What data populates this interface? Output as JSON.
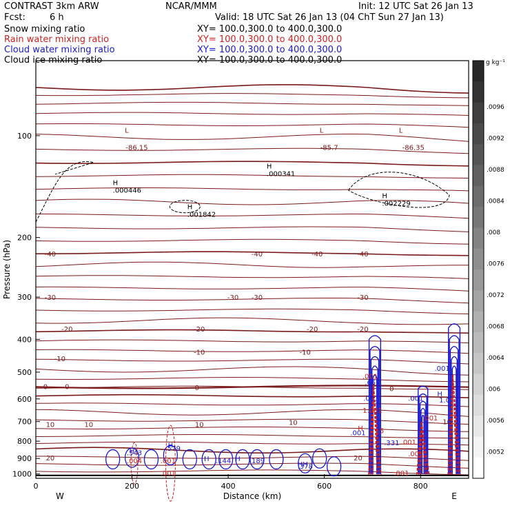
{
  "header": {
    "left_title": "CONTRAST   3km ARW",
    "center_title": "NCAR/MMM",
    "init": "Init: 12 UTC Sat 26 Jan 13",
    "fcst_label": "Fcst:",
    "fcst_value": "6 h",
    "valid": "Valid: 18 UTC Sat 26 Jan 13 (04 ChT Sun 27 Jan 13)",
    "fields": [
      {
        "name": "Snow mixing ratio",
        "xy": "XY=  100.0,300.0  to  400.0,300.0",
        "color": "#000000"
      },
      {
        "name": "Rain water mixing ratio",
        "xy": "XY=  100.0,300.0  to  400.0,300.0",
        "color": "#cc2222"
      },
      {
        "name": "Cloud water mixing ratio",
        "xy": "XY=  100.0,300.0  to  400.0,300.0",
        "color": "#1a1acc"
      },
      {
        "name": "Cloud ice mixing ratio",
        "xy": "XY=  100.0,300.0  to  400.0,300.0",
        "color": "#000000"
      }
    ]
  },
  "chart_data": {
    "type": "contour",
    "xlabel": "Distance (km)",
    "ylabel": "Pressure (hPa)",
    "xlim": [
      0,
      900
    ],
    "ylim": [
      1030,
      60
    ],
    "y_scale": "log",
    "x_ticks": [
      0,
      200,
      400,
      600,
      800
    ],
    "y_ticks": [
      100,
      200,
      300,
      400,
      500,
      600,
      700,
      800,
      900,
      1000
    ],
    "x_end_labels": {
      "left": "W",
      "right": "E"
    },
    "colorbar": {
      "unit": "g kg⁻¹",
      "ticks": [
        ".0096",
        ".0092",
        ".0088",
        ".0084",
        ".008",
        ".0076",
        ".0072",
        ".0068",
        ".0064",
        ".006",
        ".0056",
        ".0052"
      ]
    },
    "temperature_contour_labels": [
      {
        "text": "-86.15",
        "x": 210,
        "p": 108
      },
      {
        "text": "-85.7",
        "x": 610,
        "p": 108
      },
      {
        "text": "-86.35",
        "x": 785,
        "p": 108
      },
      {
        "text": "-40",
        "x": 30,
        "p": 223
      },
      {
        "text": "-40",
        "x": 460,
        "p": 223
      },
      {
        "text": "-40",
        "x": 585,
        "p": 223
      },
      {
        "text": "-40",
        "x": 680,
        "p": 223
      },
      {
        "text": "-30",
        "x": 30,
        "p": 300
      },
      {
        "text": "-30",
        "x": 410,
        "p": 300
      },
      {
        "text": "-30",
        "x": 460,
        "p": 300
      },
      {
        "text": "-30",
        "x": 680,
        "p": 300
      },
      {
        "text": "-20",
        "x": 65,
        "p": 372
      },
      {
        "text": "-20",
        "x": 340,
        "p": 372
      },
      {
        "text": "-20",
        "x": 575,
        "p": 372
      },
      {
        "text": "-20",
        "x": 680,
        "p": 372
      },
      {
        "text": "-10",
        "x": 50,
        "p": 455
      },
      {
        "text": "-10",
        "x": 340,
        "p": 435
      },
      {
        "text": "-10",
        "x": 560,
        "p": 435
      },
      {
        "text": "0",
        "x": 20,
        "p": 550
      },
      {
        "text": "0",
        "x": 65,
        "p": 550
      },
      {
        "text": "0",
        "x": 335,
        "p": 555
      },
      {
        "text": "0",
        "x": 740,
        "p": 558
      },
      {
        "text": "10",
        "x": 30,
        "p": 712
      },
      {
        "text": "10",
        "x": 110,
        "p": 712
      },
      {
        "text": "10",
        "x": 340,
        "p": 712
      },
      {
        "text": "10",
        "x": 535,
        "p": 702
      },
      {
        "text": "10",
        "x": 855,
        "p": 700
      },
      {
        "text": "20",
        "x": 30,
        "p": 895
      },
      {
        "text": "20",
        "x": 670,
        "p": 895
      }
    ],
    "extrema_labels": [
      {
        "kind": "L",
        "x": 185,
        "p": 98
      },
      {
        "kind": "L",
        "x": 590,
        "p": 98
      },
      {
        "kind": "L",
        "x": 755,
        "p": 98
      },
      {
        "kind": "H",
        "x": 160,
        "p": 140,
        "value": ".000446"
      },
      {
        "kind": "H",
        "x": 480,
        "p": 125,
        "value": ".000341"
      },
      {
        "kind": "H",
        "x": 315,
        "p": 165,
        "value": ".001842"
      },
      {
        "kind": "H",
        "x": 720,
        "p": 153,
        "value": ".002229"
      }
    ],
    "cloud_water_labels": [
      {
        "text": ".001",
        "x": 845,
        "p": 495
      },
      {
        "text": ".657",
        "x": 700,
        "p": 545
      },
      {
        "text": ".001",
        "x": 697,
        "p": 607
      },
      {
        "text": ".001",
        "x": 790,
        "p": 607
      },
      {
        "text": "1.0",
        "x": 850,
        "p": 615
      },
      {
        "text": ".001",
        "x": 670,
        "p": 768
      },
      {
        "text": ".331",
        "x": 740,
        "p": 823
      },
      {
        "text": ".543",
        "x": 205,
        "p": 880
      },
      {
        "text": ".579",
        "x": 285,
        "p": 853
      },
      {
        "text": ".144",
        "x": 390,
        "p": 930
      },
      {
        "text": ".189",
        "x": 460,
        "p": 928
      },
      {
        "text": ".378",
        "x": 560,
        "p": 965
      }
    ],
    "rain_labels": [
      {
        "text": ".001",
        "x": 695,
        "p": 523
      },
      {
        "text": "1.001",
        "x": 700,
        "p": 660
      },
      {
        "text": ".001",
        "x": 820,
        "p": 695
      },
      {
        "text": "15",
        "x": 715,
        "p": 757
      },
      {
        "text": ".001",
        "x": 775,
        "p": 818
      },
      {
        "text": ".001",
        "x": 790,
        "p": 887
      },
      {
        "text": ".004",
        "x": 205,
        "p": 930
      },
      {
        "text": ".001",
        "x": 275,
        "p": 930
      },
      {
        "text": ".001",
        "x": 275,
        "p": 1010
      },
      {
        "text": ".001",
        "x": 760,
        "p": 1010
      }
    ],
    "marker_labels": [
      {
        "text": "H",
        "x": 200,
        "p": 870,
        "color": "#1a1acc"
      },
      {
        "text": "H",
        "x": 280,
        "p": 835,
        "color": "#1a1acc"
      },
      {
        "text": "H",
        "x": 355,
        "p": 915,
        "color": "#1a1acc"
      },
      {
        "text": "H",
        "x": 420,
        "p": 915,
        "color": "#1a1acc"
      },
      {
        "text": "HH",
        "x": 555,
        "p": 950,
        "color": "#1a1acc"
      },
      {
        "text": "H",
        "x": 840,
        "p": 590,
        "color": "#1a1acc"
      },
      {
        "text": "H",
        "x": 675,
        "p": 746,
        "color": "#cc2222"
      }
    ]
  }
}
